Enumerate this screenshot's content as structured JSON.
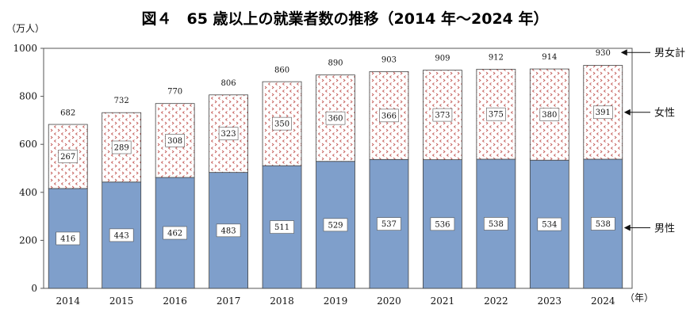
{
  "chart_data": {
    "type": "bar",
    "stacked": true,
    "title": "図４　65 歳以上の就業者数の推移（2014 年～2024 年）",
    "ylabel": "（万人）",
    "xlabel": "（年）",
    "ylim": [
      0,
      1000
    ],
    "yticks": [
      0,
      200,
      400,
      600,
      800,
      1000
    ],
    "grid": false,
    "categories": [
      "2014",
      "2015",
      "2016",
      "2017",
      "2018",
      "2019",
      "2020",
      "2021",
      "2022",
      "2023",
      "2024"
    ],
    "series": [
      {
        "name": "男性",
        "values": [
          416,
          443,
          462,
          483,
          511,
          529,
          537,
          536,
          538,
          534,
          538
        ],
        "color": "#7f9fcb"
      },
      {
        "name": "女性",
        "values": [
          267,
          289,
          308,
          323,
          350,
          360,
          366,
          373,
          375,
          380,
          391
        ],
        "color": "#ffffff",
        "pattern_color": "#c0504d"
      }
    ],
    "totals": {
      "name": "男女計",
      "values": [
        682,
        732,
        770,
        806,
        860,
        890,
        903,
        909,
        912,
        914,
        930
      ]
    }
  }
}
